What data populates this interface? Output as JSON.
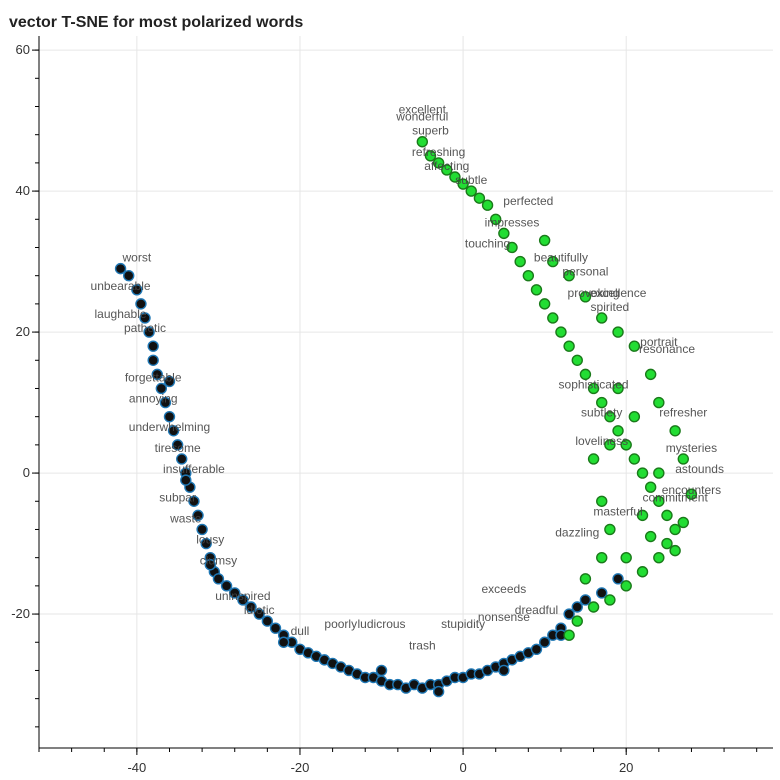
{
  "chart_data": {
    "type": "scatter",
    "title": "vector T-SNE for most polarized words",
    "xlabel": "",
    "ylabel": "",
    "xlim": [
      -52,
      38
    ],
    "ylim": [
      -39,
      62
    ],
    "xticks": [
      -40,
      -20,
      0,
      20
    ],
    "yticks": [
      -20,
      0,
      20,
      40,
      60
    ],
    "grid": true,
    "colors": {
      "negative_fill": "#111111",
      "negative_stroke": "#1f77b4",
      "positive_fill": "#22dd33",
      "positive_stroke": "#1a7a1a",
      "label": "#444444",
      "grid": "#e6e6e6"
    },
    "series": [
      {
        "class": "negative",
        "points": [
          {
            "x": -41,
            "y": 28
          },
          {
            "x": -40,
            "y": 26
          },
          {
            "x": -39.5,
            "y": 24
          },
          {
            "x": -39,
            "y": 22
          },
          {
            "x": -38.5,
            "y": 20
          },
          {
            "x": -38,
            "y": 18
          },
          {
            "x": -38,
            "y": 16
          },
          {
            "x": -37.5,
            "y": 14
          },
          {
            "x": -37,
            "y": 12
          },
          {
            "x": -36.5,
            "y": 10
          },
          {
            "x": -36,
            "y": 8
          },
          {
            "x": -35.5,
            "y": 6
          },
          {
            "x": -35,
            "y": 4
          },
          {
            "x": -34.5,
            "y": 2
          },
          {
            "x": -34,
            "y": 0
          },
          {
            "x": -33.5,
            "y": -2
          },
          {
            "x": -33,
            "y": -4
          },
          {
            "x": -32.5,
            "y": -6
          },
          {
            "x": -32,
            "y": -8
          },
          {
            "x": -31.5,
            "y": -10
          },
          {
            "x": -31,
            "y": -12
          },
          {
            "x": -30.5,
            "y": -14
          },
          {
            "x": -30,
            "y": -15
          },
          {
            "x": -29,
            "y": -16
          },
          {
            "x": -28,
            "y": -17
          },
          {
            "x": -27,
            "y": -18
          },
          {
            "x": -26,
            "y": -19
          },
          {
            "x": -25,
            "y": -20
          },
          {
            "x": -24,
            "y": -21
          },
          {
            "x": -23,
            "y": -22
          },
          {
            "x": -22,
            "y": -23
          },
          {
            "x": -21,
            "y": -24
          },
          {
            "x": -20,
            "y": -25
          },
          {
            "x": -19,
            "y": -25.5
          },
          {
            "x": -18,
            "y": -26
          },
          {
            "x": -17,
            "y": -26.5
          },
          {
            "x": -16,
            "y": -27
          },
          {
            "x": -15,
            "y": -27.5
          },
          {
            "x": -14,
            "y": -28
          },
          {
            "x": -13,
            "y": -28.5
          },
          {
            "x": -12,
            "y": -29
          },
          {
            "x": -11,
            "y": -29
          },
          {
            "x": -10,
            "y": -29.5
          },
          {
            "x": -9,
            "y": -30
          },
          {
            "x": -8,
            "y": -30
          },
          {
            "x": -7,
            "y": -30.5
          },
          {
            "x": -6,
            "y": -30
          },
          {
            "x": -5,
            "y": -30.5
          },
          {
            "x": -4,
            "y": -30
          },
          {
            "x": -3,
            "y": -30
          },
          {
            "x": -2,
            "y": -29.5
          },
          {
            "x": -1,
            "y": -29
          },
          {
            "x": 0,
            "y": -29
          },
          {
            "x": 1,
            "y": -28.5
          },
          {
            "x": 2,
            "y": -28.5
          },
          {
            "x": 3,
            "y": -28
          },
          {
            "x": 4,
            "y": -27.5
          },
          {
            "x": 5,
            "y": -27
          },
          {
            "x": 6,
            "y": -26.5
          },
          {
            "x": 7,
            "y": -26
          },
          {
            "x": 8,
            "y": -25.5
          },
          {
            "x": 9,
            "y": -25
          },
          {
            "x": 10,
            "y": -24
          },
          {
            "x": 11,
            "y": -23
          },
          {
            "x": 12,
            "y": -22
          },
          {
            "x": 13,
            "y": -20
          },
          {
            "x": 14,
            "y": -19
          },
          {
            "x": 15,
            "y": -18
          },
          {
            "x": 17,
            "y": -17
          },
          {
            "x": 19,
            "y": -15
          },
          {
            "x": -42,
            "y": 29
          },
          {
            "x": -36,
            "y": 13
          },
          {
            "x": -34,
            "y": -1
          },
          {
            "x": -31,
            "y": -13
          },
          {
            "x": -22,
            "y": -24
          },
          {
            "x": -10,
            "y": -28
          },
          {
            "x": -3,
            "y": -31
          },
          {
            "x": 5,
            "y": -28
          },
          {
            "x": 12,
            "y": -23
          }
        ]
      },
      {
        "class": "positive",
        "points": [
          {
            "x": -5,
            "y": 47
          },
          {
            "x": -4,
            "y": 45
          },
          {
            "x": -3,
            "y": 44
          },
          {
            "x": -2,
            "y": 43
          },
          {
            "x": -1,
            "y": 42
          },
          {
            "x": 0,
            "y": 41
          },
          {
            "x": 1,
            "y": 40
          },
          {
            "x": 2,
            "y": 39
          },
          {
            "x": 3,
            "y": 38
          },
          {
            "x": 4,
            "y": 36
          },
          {
            "x": 5,
            "y": 34
          },
          {
            "x": 6,
            "y": 32
          },
          {
            "x": 7,
            "y": 30
          },
          {
            "x": 8,
            "y": 28
          },
          {
            "x": 9,
            "y": 26
          },
          {
            "x": 10,
            "y": 24
          },
          {
            "x": 11,
            "y": 22
          },
          {
            "x": 12,
            "y": 20
          },
          {
            "x": 13,
            "y": 18
          },
          {
            "x": 14,
            "y": 16
          },
          {
            "x": 15,
            "y": 14
          },
          {
            "x": 16,
            "y": 12
          },
          {
            "x": 17,
            "y": 10
          },
          {
            "x": 18,
            "y": 8
          },
          {
            "x": 19,
            "y": 6
          },
          {
            "x": 20,
            "y": 4
          },
          {
            "x": 21,
            "y": 2
          },
          {
            "x": 22,
            "y": 0
          },
          {
            "x": 23,
            "y": -2
          },
          {
            "x": 24,
            "y": -4
          },
          {
            "x": 25,
            "y": -6
          },
          {
            "x": 26,
            "y": -8
          },
          {
            "x": 25,
            "y": -10
          },
          {
            "x": 24,
            "y": -12
          },
          {
            "x": 22,
            "y": -14
          },
          {
            "x": 20,
            "y": -16
          },
          {
            "x": 18,
            "y": -18
          },
          {
            "x": 16,
            "y": -19
          },
          {
            "x": 14,
            "y": -21
          },
          {
            "x": 13,
            "y": -23
          },
          {
            "x": 28,
            "y": -3
          },
          {
            "x": 27,
            "y": 2
          },
          {
            "x": 26,
            "y": 6
          },
          {
            "x": 24,
            "y": 10
          },
          {
            "x": 23,
            "y": 14
          },
          {
            "x": 21,
            "y": 18
          },
          {
            "x": 19,
            "y": 20
          },
          {
            "x": 17,
            "y": 22
          },
          {
            "x": 15,
            "y": 25
          },
          {
            "x": 13,
            "y": 28
          },
          {
            "x": 11,
            "y": 30
          },
          {
            "x": 10,
            "y": 33
          },
          {
            "x": 16,
            "y": 2
          },
          {
            "x": 17,
            "y": -4
          },
          {
            "x": 18,
            "y": -8
          },
          {
            "x": 19,
            "y": 12
          },
          {
            "x": 20,
            "y": -12
          },
          {
            "x": 21,
            "y": 8
          },
          {
            "x": 22,
            "y": -6
          },
          {
            "x": 18,
            "y": 4
          },
          {
            "x": 23,
            "y": -9
          },
          {
            "x": 15,
            "y": -15
          },
          {
            "x": 17,
            "y": -12
          },
          {
            "x": 24,
            "y": 0
          },
          {
            "x": 26,
            "y": -11
          },
          {
            "x": 27,
            "y": -7
          }
        ]
      }
    ],
    "labels": [
      {
        "text": "excellent",
        "x": -5,
        "y": 51
      },
      {
        "text": "wonderful",
        "x": -5,
        "y": 50
      },
      {
        "text": "superb",
        "x": -4,
        "y": 48
      },
      {
        "text": "refreshing",
        "x": -3,
        "y": 45
      },
      {
        "text": "affecting",
        "x": -2,
        "y": 43
      },
      {
        "text": "subtle",
        "x": 1,
        "y": 41
      },
      {
        "text": "perfected",
        "x": 8,
        "y": 38
      },
      {
        "text": "touching",
        "x": 3,
        "y": 32
      },
      {
        "text": "impresses",
        "x": 6,
        "y": 35
      },
      {
        "text": "beautifully",
        "x": 12,
        "y": 30
      },
      {
        "text": "personal",
        "x": 15,
        "y": 28
      },
      {
        "text": "provoking",
        "x": 16,
        "y": 25
      },
      {
        "text": "excellence",
        "x": 19,
        "y": 25
      },
      {
        "text": "spirited",
        "x": 18,
        "y": 23
      },
      {
        "text": "portrait",
        "x": 24,
        "y": 18
      },
      {
        "text": "resonance",
        "x": 25,
        "y": 17
      },
      {
        "text": "sophisticated",
        "x": 16,
        "y": 12
      },
      {
        "text": "subtlety",
        "x": 17,
        "y": 8
      },
      {
        "text": "loveliness",
        "x": 17,
        "y": 4
      },
      {
        "text": "refresher",
        "x": 27,
        "y": 8
      },
      {
        "text": "mysteries",
        "x": 28,
        "y": 3
      },
      {
        "text": "astounds",
        "x": 29,
        "y": 0
      },
      {
        "text": "encounters",
        "x": 28,
        "y": -3
      },
      {
        "text": "commitment",
        "x": 26,
        "y": -4
      },
      {
        "text": "masterful",
        "x": 19,
        "y": -6
      },
      {
        "text": "dazzling",
        "x": 14,
        "y": -9
      },
      {
        "text": "exceeds",
        "x": 5,
        "y": -17
      },
      {
        "text": "worst",
        "x": -40,
        "y": 30
      },
      {
        "text": "unbearable",
        "x": -42,
        "y": 26
      },
      {
        "text": "laughable",
        "x": -42,
        "y": 22
      },
      {
        "text": "pathetic",
        "x": -39,
        "y": 20
      },
      {
        "text": "forgettable",
        "x": -38,
        "y": 13
      },
      {
        "text": "annoying",
        "x": -38,
        "y": 10
      },
      {
        "text": "underwhelming",
        "x": -36,
        "y": 6
      },
      {
        "text": "tiresome",
        "x": -35,
        "y": 3
      },
      {
        "text": "insufferable",
        "x": -33,
        "y": 0
      },
      {
        "text": "subpar",
        "x": -35,
        "y": -4
      },
      {
        "text": "waste",
        "x": -34,
        "y": -7
      },
      {
        "text": "lousy",
        "x": -31,
        "y": -10
      },
      {
        "text": "clumsy",
        "x": -30,
        "y": -13
      },
      {
        "text": "uninspired",
        "x": -27,
        "y": -18
      },
      {
        "text": "idiotic",
        "x": -25,
        "y": -20
      },
      {
        "text": "dull",
        "x": -20,
        "y": -23
      },
      {
        "text": "poorly",
        "x": -15,
        "y": -22
      },
      {
        "text": "ludicrous",
        "x": -10,
        "y": -22
      },
      {
        "text": "trash",
        "x": -5,
        "y": -25
      },
      {
        "text": "stupidity",
        "x": 0,
        "y": -22
      },
      {
        "text": "nonsense",
        "x": 5,
        "y": -21
      },
      {
        "text": "dreadful",
        "x": 9,
        "y": -20
      }
    ]
  }
}
